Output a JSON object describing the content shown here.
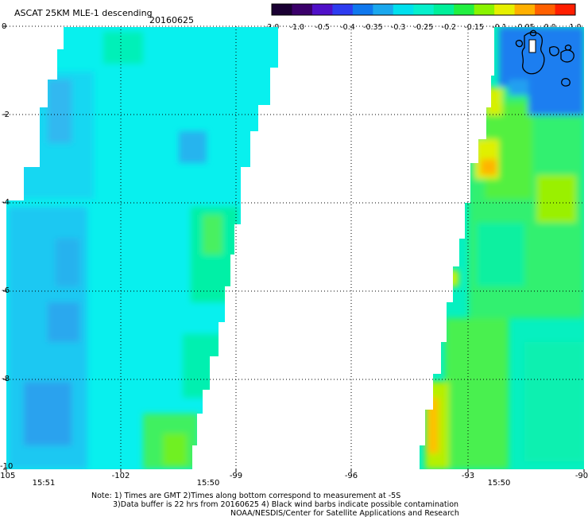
{
  "header": {
    "title": "ASCAT 25KM MLE-1 descending",
    "date": "20160625"
  },
  "colorbar": {
    "colors": [
      "#1a0033",
      "#3a006a",
      "#4f10c8",
      "#2d3cf0",
      "#0f78ee",
      "#1aa8ee",
      "#00e0ee",
      "#06f0cc",
      "#00f09a",
      "#22f040",
      "#8af400",
      "#e6f000",
      "#ffb000",
      "#ff6000",
      "#ff1e00"
    ],
    "tick_labels": [
      "-3.0",
      "-1.0",
      "-0.5",
      "-0.4",
      "-0.35",
      "-0.3",
      "-0.25",
      "-0.2",
      "-0.15",
      "-0.1",
      "-0.05",
      "0.0",
      "1.0"
    ]
  },
  "map": {
    "lat_labels": [
      "0",
      "-2",
      "-4",
      "-6",
      "-8",
      "-10"
    ],
    "lon_labels": [
      "-105",
      "-102",
      "-99",
      "-96",
      "-93",
      "-90"
    ],
    "time_labels": [
      "15:51",
      "15:50",
      "15:50"
    ],
    "time_color": "#c04000"
  },
  "notes": {
    "line1": "Note: 1) Times are GMT 2)Times along bottom correspond to measurement at -5S",
    "line2": "3)Data buffer is 22 hrs from 20160625 4) Black wind barbs indicate possible contamination",
    "line3": "NOAA/NESDIS/Center for Satellite Applications and Research"
  }
}
